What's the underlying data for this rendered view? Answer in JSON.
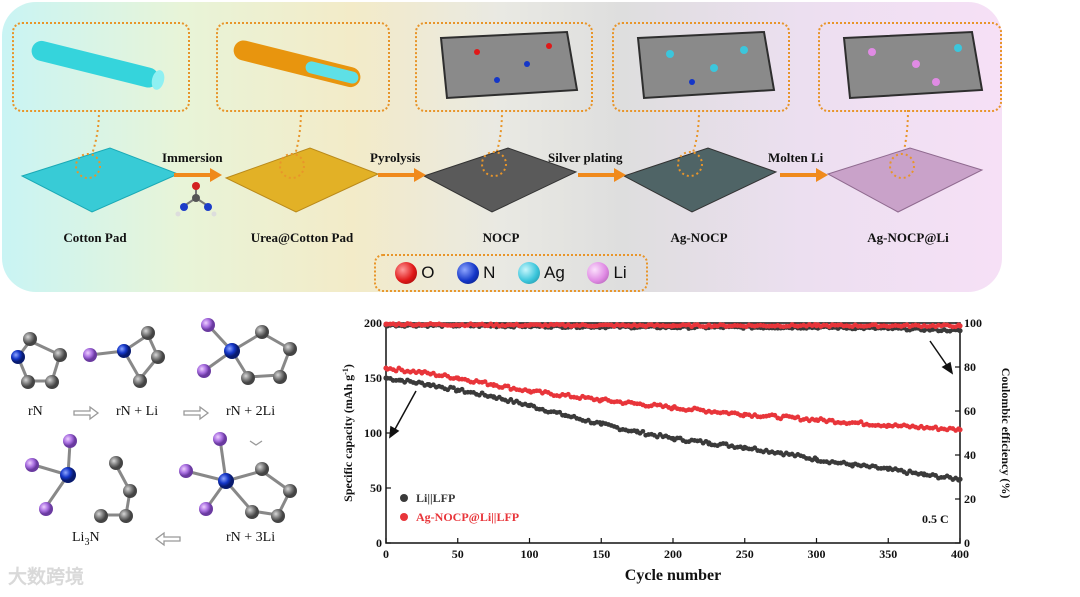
{
  "schematic": {
    "steps": [
      {
        "label": "Cotton Pad"
      },
      {
        "label": "Urea@Cotton Pad"
      },
      {
        "label": "NOCP"
      },
      {
        "label": "Ag-NOCP"
      },
      {
        "label": "Ag-NOCP@Li"
      }
    ],
    "processes": [
      "Immersion",
      "Pyrolysis",
      "Silver plating",
      "Molten Li"
    ],
    "legend": [
      {
        "symbol": "O",
        "color": "#e01818"
      },
      {
        "symbol": "N",
        "color": "#1436c8"
      },
      {
        "symbol": "Ag",
        "color": "#3cc6dc"
      },
      {
        "symbol": "Li",
        "color": "#e08be4"
      }
    ]
  },
  "mechanism": {
    "labels": {
      "rN": "rN",
      "rN_Li": "rN + Li",
      "rN_2Li": "rN + 2Li",
      "rN_3Li": "rN + 3Li",
      "Li3N_main": "Li",
      "Li3N_sub": "3",
      "Li3N_tail": "N"
    }
  },
  "chart_data": {
    "type": "line",
    "xlabel": "Cycle number",
    "ylabel_left": "Specific capacity (mAh g",
    "ylabel_left_sup": "-1",
    "ylabel_left_tail": ")",
    "ylabel_right": "Coulombic efficiency (%)",
    "xlim": [
      0,
      400
    ],
    "ylim_left": [
      0,
      200
    ],
    "ylim_right": [
      0,
      100
    ],
    "x_ticks": [
      0,
      50,
      100,
      150,
      200,
      250,
      300,
      350,
      400
    ],
    "y_ticks_left": [
      0,
      50,
      100,
      150,
      200
    ],
    "y_ticks_right": [
      0,
      20,
      40,
      60,
      80,
      100
    ],
    "annotation": "0.5 C",
    "series": [
      {
        "name": "Li||LFP",
        "color": "#3a3a3a",
        "axis": "left",
        "x": [
          0,
          10,
          30,
          50,
          75,
          100,
          125,
          150,
          175,
          200,
          225,
          250,
          275,
          300,
          325,
          350,
          375,
          400
        ],
        "values": [
          150,
          148,
          144,
          139,
          133,
          125,
          116,
          108,
          101,
          95,
          91,
          87,
          82,
          76,
          71,
          67,
          62,
          58
        ]
      },
      {
        "name": "Ag-NOCP@Li||LFP",
        "color": "#e8353a",
        "axis": "left",
        "x": [
          0,
          25,
          50,
          75,
          100,
          150,
          200,
          250,
          300,
          350,
          400
        ],
        "values": [
          159,
          155,
          150,
          144,
          138,
          130,
          123,
          117,
          112,
          107,
          103
        ]
      },
      {
        "name": "Li||LFP CE",
        "color": "#3a3a3a",
        "axis": "right",
        "x": [
          0,
          100,
          200,
          300,
          350,
          400
        ],
        "values": [
          99,
          98.5,
          98,
          98,
          97.5,
          96.5
        ]
      },
      {
        "name": "Ag-NOCP@Li||LFP CE",
        "color": "#e8353a",
        "axis": "right",
        "x": [
          0,
          100,
          200,
          300,
          400
        ],
        "values": [
          99.5,
          99,
          98.8,
          98.8,
          98.7
        ]
      }
    ],
    "legend": [
      "Li||LFP",
      "Ag-NOCP@Li||LFP"
    ]
  },
  "watermark": "大数跨境"
}
